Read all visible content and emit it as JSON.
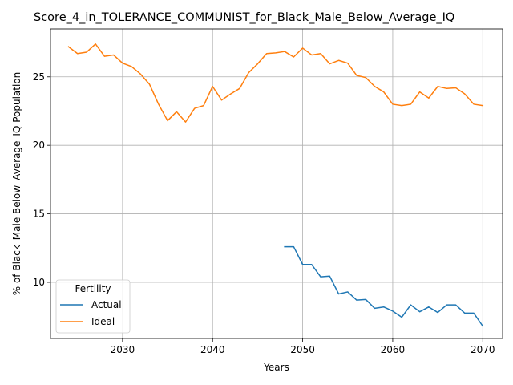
{
  "chart_data": {
    "type": "line",
    "title": "Score_4_in_TOLERANCE_COMMUNIST_for_Black_Male_Below_Average_IQ",
    "xlabel": "Years",
    "ylabel": "% of Black_Male Below_Average_IQ Population",
    "xlim": [
      2022,
      2072.2
    ],
    "ylim": [
      5.9,
      28.5
    ],
    "xticks": [
      2030,
      2040,
      2050,
      2060,
      2070
    ],
    "yticks": [
      10,
      15,
      20,
      25
    ],
    "grid": true,
    "legend": {
      "title": "Fertility",
      "placement": "lower-left"
    },
    "series": [
      {
        "name": "Actual",
        "color": "#1f77b4",
        "x": [
          2048,
          2049,
          2050,
          2051,
          2052,
          2053,
          2054,
          2055,
          2056,
          2057,
          2058,
          2059,
          2060,
          2061,
          2062,
          2063,
          2064,
          2065,
          2066,
          2067,
          2068,
          2069,
          2070
        ],
        "y": [
          12.6,
          12.6,
          11.3,
          11.3,
          10.4,
          10.45,
          9.15,
          9.3,
          8.7,
          8.75,
          8.1,
          8.2,
          7.9,
          7.45,
          8.35,
          7.85,
          8.2,
          7.8,
          8.35,
          8.35,
          7.75,
          7.75,
          6.8
        ]
      },
      {
        "name": "Ideal",
        "color": "#ff7f0e",
        "x": [
          2024,
          2025,
          2026,
          2027,
          2028,
          2029,
          2030,
          2031,
          2032,
          2033,
          2034,
          2035,
          2036,
          2037,
          2038,
          2039,
          2040,
          2041,
          2042,
          2043,
          2044,
          2045,
          2046,
          2047,
          2048,
          2049,
          2050,
          2051,
          2052,
          2053,
          2054,
          2055,
          2056,
          2057,
          2058,
          2059,
          2060,
          2061,
          2062,
          2063,
          2064,
          2065,
          2066,
          2067,
          2068,
          2069,
          2070
        ],
        "y": [
          27.2,
          26.7,
          26.8,
          27.4,
          26.5,
          26.6,
          26.0,
          25.75,
          25.2,
          24.45,
          23.0,
          21.8,
          22.45,
          21.7,
          22.7,
          22.9,
          24.3,
          23.3,
          23.75,
          24.15,
          25.3,
          25.95,
          26.7,
          26.75,
          26.85,
          26.45,
          27.1,
          26.6,
          26.7,
          25.95,
          26.2,
          26.0,
          25.1,
          24.95,
          24.3,
          23.9,
          23.0,
          22.9,
          23.0,
          23.9,
          23.45,
          24.3,
          24.15,
          24.2,
          23.75,
          23.0,
          22.9
        ]
      }
    ]
  }
}
